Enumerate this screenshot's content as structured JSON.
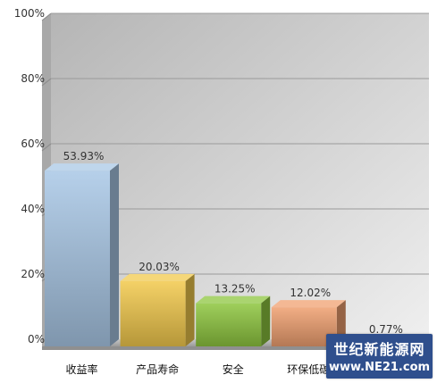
{
  "chart_data": {
    "type": "bar",
    "categories": [
      "收益率",
      "产品寿命",
      "安全",
      "环保低碳",
      ""
    ],
    "values": [
      53.93,
      20.03,
      13.25,
      12.02,
      0.77
    ],
    "data_labels": [
      "53.93%",
      "20.03%",
      "13.25%",
      "12.02%",
      "0.77%"
    ],
    "ylim": [
      0,
      100
    ],
    "yticks": [
      "0%",
      "20%",
      "40%",
      "60%",
      "80%",
      "100%"
    ],
    "grid": true,
    "style": "3d",
    "colors": [
      "#a9c8e6",
      "#f2c94c",
      "#8ec63f",
      "#f0a070",
      "#c9c9c9"
    ],
    "title": "",
    "xlabel": "",
    "ylabel": ""
  },
  "watermark": {
    "line1": "世纪新能源网",
    "line2": "www.NE21.com"
  }
}
